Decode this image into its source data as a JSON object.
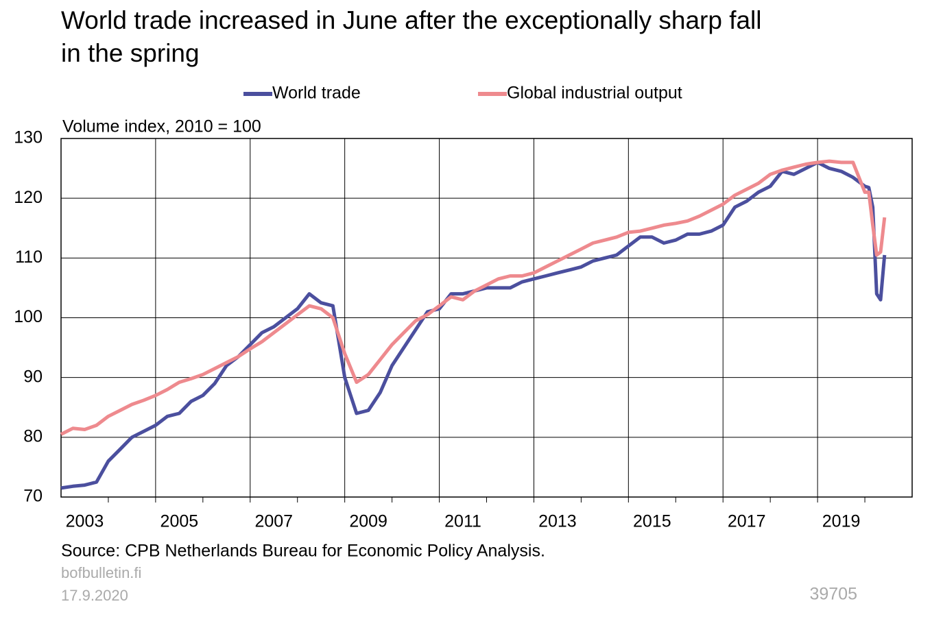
{
  "chart_data": {
    "type": "line",
    "title": "World trade increased in June after the exceptionally sharp fall in the spring",
    "y_axis_label": "Volume index, 2010 = 100",
    "source": "Source: CPB Netherlands Bureau for Economic Policy Analysis.",
    "footer": {
      "site": "bofbulletin.fi",
      "date": "17.9.2020",
      "code": "39705"
    },
    "x": [
      2003,
      2003.25,
      2003.5,
      2003.75,
      2004,
      2004.25,
      2004.5,
      2004.75,
      2005,
      2005.25,
      2005.5,
      2005.75,
      2006,
      2006.25,
      2006.5,
      2006.75,
      2007,
      2007.25,
      2007.5,
      2007.75,
      2008,
      2008.25,
      2008.5,
      2008.75,
      2009,
      2009.25,
      2009.5,
      2009.75,
      2010,
      2010.25,
      2010.5,
      2010.75,
      2011,
      2011.25,
      2011.5,
      2011.75,
      2012,
      2012.25,
      2012.5,
      2012.75,
      2013,
      2013.25,
      2013.5,
      2013.75,
      2014,
      2014.25,
      2014.5,
      2014.75,
      2015,
      2015.25,
      2015.5,
      2015.75,
      2016,
      2016.25,
      2016.5,
      2016.75,
      2017,
      2017.25,
      2017.5,
      2017.75,
      2018,
      2018.25,
      2018.5,
      2018.75,
      2019,
      2019.25,
      2019.5,
      2019.75,
      2020,
      2020.083,
      2020.167,
      2020.25,
      2020.333,
      2020.417
    ],
    "series": [
      {
        "name": "World trade",
        "color": "#4b4f9e",
        "values": [
          71.5,
          71.8,
          72,
          72.5,
          76,
          78,
          80,
          81,
          82,
          83.5,
          84,
          86,
          87,
          89,
          92,
          93.5,
          95.5,
          97.5,
          98.5,
          100,
          101.5,
          104,
          102.5,
          102,
          90,
          84,
          84.5,
          87.5,
          92,
          95,
          98,
          101,
          101.5,
          104,
          104,
          104.5,
          105,
          105,
          105,
          106,
          106.5,
          107,
          107.5,
          108,
          108.5,
          109.5,
          110,
          110.5,
          112,
          113.5,
          113.5,
          112.5,
          113,
          114,
          114,
          114.5,
          115.5,
          118.5,
          119.5,
          121,
          122,
          124.5,
          124,
          125,
          126,
          125,
          124.5,
          123.5,
          122,
          121.8,
          118.5,
          104,
          103,
          110.5
        ]
      },
      {
        "name": "Global industrial output",
        "color": "#ee8a8e",
        "values": [
          80.5,
          81.5,
          81.3,
          82,
          83.5,
          84.5,
          85.5,
          86.2,
          87,
          88,
          89.2,
          89.8,
          90.5,
          91.5,
          92.5,
          93.5,
          94.8,
          96,
          97.5,
          99,
          100.5,
          102,
          101.5,
          100,
          94,
          89.2,
          90.5,
          93,
          95.5,
          97.5,
          99.5,
          100.5,
          102,
          103.5,
          103,
          104.5,
          105.5,
          106.5,
          107,
          107,
          107.5,
          108.5,
          109.5,
          110.5,
          111.5,
          112.5,
          113,
          113.5,
          114.3,
          114.5,
          115,
          115.5,
          115.8,
          116.2,
          117,
          118,
          119,
          120.5,
          121.5,
          122.5,
          124,
          124.7,
          125.2,
          125.7,
          126,
          126.2,
          126,
          126,
          121,
          121,
          115.5,
          110.5,
          111,
          116.8
        ]
      }
    ],
    "xlim": [
      2003,
      2021
    ],
    "xticks": [
      {
        "value": 2003.5,
        "label": "2003"
      },
      {
        "value": 2005.5,
        "label": "2005"
      },
      {
        "value": 2007.5,
        "label": "2007"
      },
      {
        "value": 2009.5,
        "label": "2009"
      },
      {
        "value": 2011.5,
        "label": "2011"
      },
      {
        "value": 2013.5,
        "label": "2013"
      },
      {
        "value": 2015.5,
        "label": "2015"
      },
      {
        "value": 2017.5,
        "label": "2017"
      },
      {
        "value": 2019.5,
        "label": "2019"
      }
    ],
    "x_gridlines": [
      2005,
      2007,
      2009,
      2011,
      2013,
      2015,
      2017,
      2019
    ],
    "x_minor_ticks": [
      2004,
      2006,
      2008,
      2010,
      2012,
      2014,
      2016,
      2018,
      2020
    ],
    "ylim": [
      70,
      130
    ],
    "yticks": [
      70,
      80,
      90,
      100,
      110,
      120,
      130
    ],
    "grid": true
  }
}
